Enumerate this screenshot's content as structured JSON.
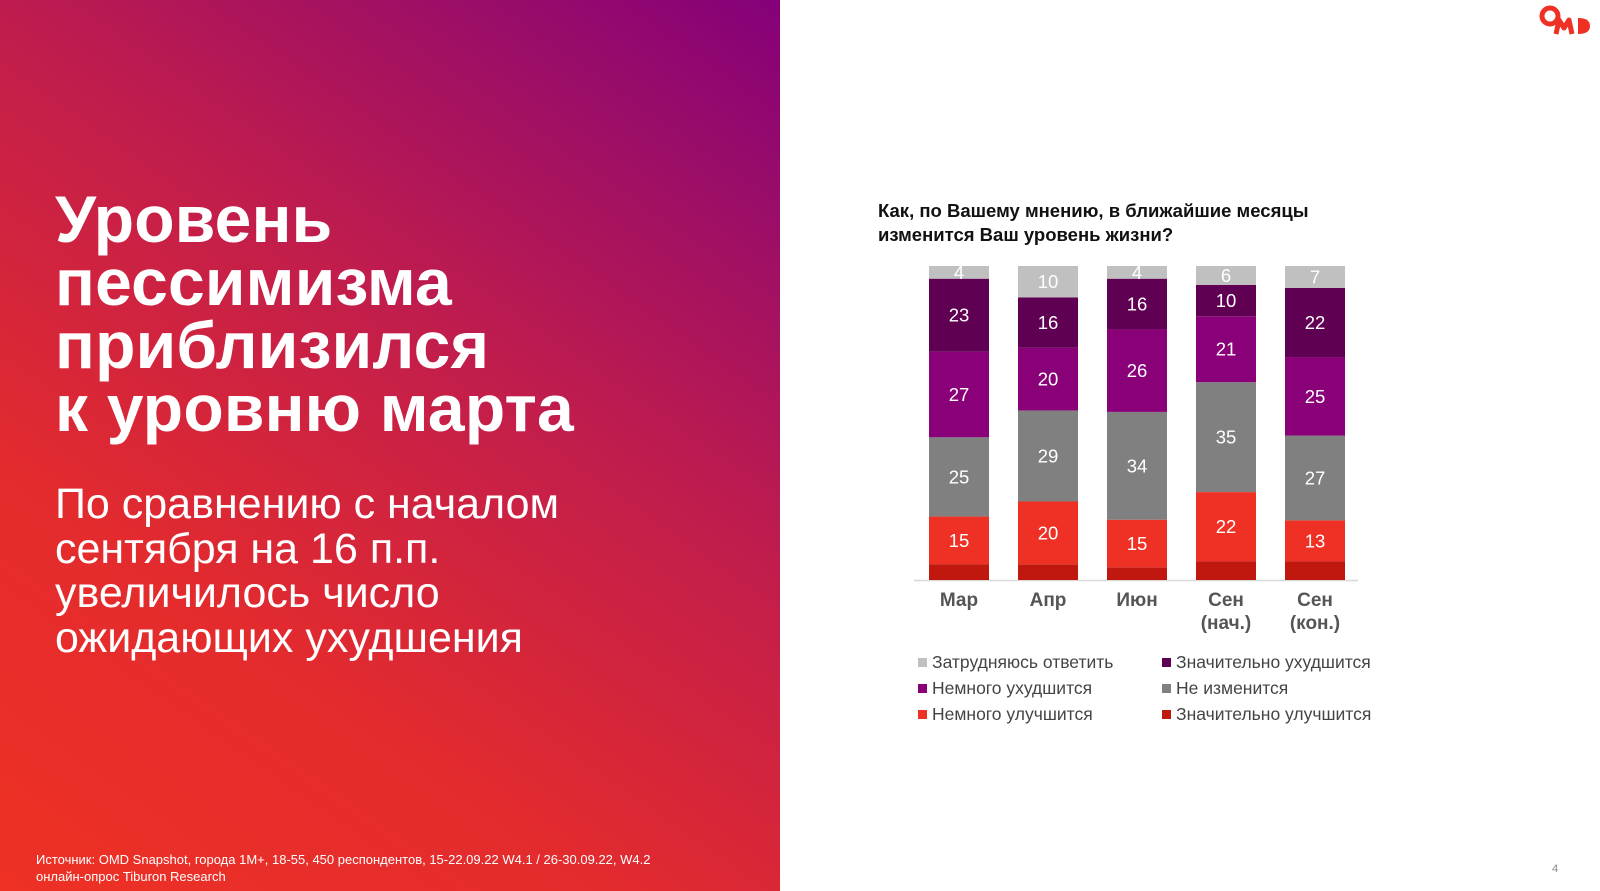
{
  "slide": {
    "headline_lines": [
      "Уровень",
      "пессимизма",
      "приблизился",
      "к уровню марта"
    ],
    "subhead_lines": [
      "По сравнению с началом",
      "сентября на 16 п.п.",
      "увеличилось число",
      "ожидающих ухудшения"
    ],
    "source_lines": [
      "Источник: OMD Snapshot, города 1M+, 18-55, 450 респондентов, 15-22.09.22 W4.1 / 26-30.09.22, W4.2",
      "онлайн-опрос Tiburon Research"
    ],
    "logo_text": "OMD",
    "page_number": "4",
    "colors": {
      "brand_red": "#ee3124",
      "brand_purple": "#85007a"
    }
  },
  "chart_data": {
    "type": "bar",
    "stacked": true,
    "title_lines": [
      "Как, по Вашему мнению, в ближайшие месяцы",
      "изменится Ваш уровень жизни?"
    ],
    "xlabel": "",
    "ylabel": "",
    "ylim": [
      0,
      100
    ],
    "grid": false,
    "legend_position": "bottom",
    "categories": [
      [
        "Мар"
      ],
      [
        "Апр"
      ],
      [
        "Июн"
      ],
      [
        "Сен",
        "(нач.)"
      ],
      [
        "Сен",
        "(кон.)"
      ]
    ],
    "series": [
      {
        "name": "Значительно улучшится",
        "color": "#c0180f",
        "values": [
          5,
          5,
          4,
          6,
          6
        ],
        "show_labels": false
      },
      {
        "name": "Немного улучшится",
        "color": "#ee3124",
        "values": [
          15,
          20,
          15,
          22,
          13
        ],
        "show_labels": true
      },
      {
        "name": "Не изменится",
        "color": "#808080",
        "values": [
          25,
          29,
          34,
          35,
          27
        ],
        "show_labels": true
      },
      {
        "name": "Немного ухудшится",
        "color": "#8a0078",
        "values": [
          27,
          20,
          26,
          21,
          25
        ],
        "show_labels": true
      },
      {
        "name": "Значительно ухудшится",
        "color": "#5f0053",
        "values": [
          23,
          16,
          16,
          10,
          22
        ],
        "show_labels": true
      },
      {
        "name": "Затрудняюсь ответить",
        "color": "#c0c0c0",
        "values": [
          4,
          10,
          4,
          6,
          7
        ],
        "show_labels": true
      }
    ],
    "legend_order": [
      "Затрудняюсь ответить",
      "Значительно ухудшится",
      "Немного ухудшится",
      "Не изменится",
      "Немного улучшится",
      "Значительно улучшится"
    ]
  }
}
